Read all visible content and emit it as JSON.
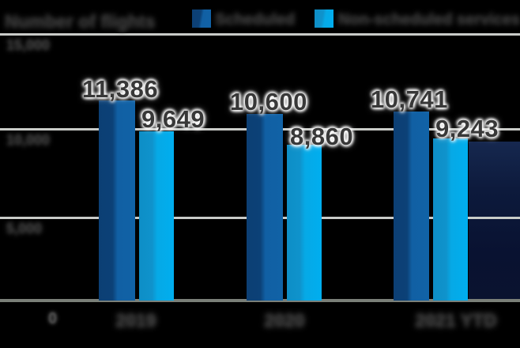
{
  "title": {
    "text": "Number of flights"
  },
  "legend": [
    {
      "label": "Scheduled",
      "color": "#1162a6"
    },
    {
      "label": "Non-scheduled services",
      "color": "#00aeef"
    }
  ],
  "y_axis": {
    "ticks": [
      {
        "label": "15,000",
        "value": 15000
      },
      {
        "label": "10,000",
        "value": 10000
      },
      {
        "label": "5,000",
        "value": 5000
      }
    ],
    "zero_label": "0"
  },
  "x_axis": {
    "categories": [
      "2019",
      "2020",
      "2021 YTD"
    ]
  },
  "chart_data": {
    "type": "bar",
    "categories": [
      "2019",
      "2020",
      "2021 YTD"
    ],
    "series": [
      {
        "name": "Scheduled",
        "color": "#1162a6",
        "values": [
          11386,
          10600,
          10741
        ],
        "labels": [
          "11,386",
          "10,600",
          "10,741"
        ]
      },
      {
        "name": "Non-scheduled services",
        "color": "#00aeef",
        "values": [
          9649,
          8860,
          9243
        ],
        "labels": [
          "9,649",
          "8,860",
          "9,243"
        ]
      }
    ],
    "title": "Number of flights",
    "xlabel": "",
    "ylabel": "",
    "ylim": [
      0,
      15000
    ],
    "gridlines": [
      5000,
      10000,
      15000
    ],
    "grid": true,
    "legend_position": "top"
  },
  "colors": {
    "background": "#000000",
    "bar_dark": "#1162a6",
    "bar_light": "#00aeef",
    "gridline": "#c9cbc8",
    "axis_line": "#7a7f78",
    "data_label_text": "#383838",
    "muted_text": "#3c3c3c",
    "navy_block": "#0d1a3c"
  }
}
